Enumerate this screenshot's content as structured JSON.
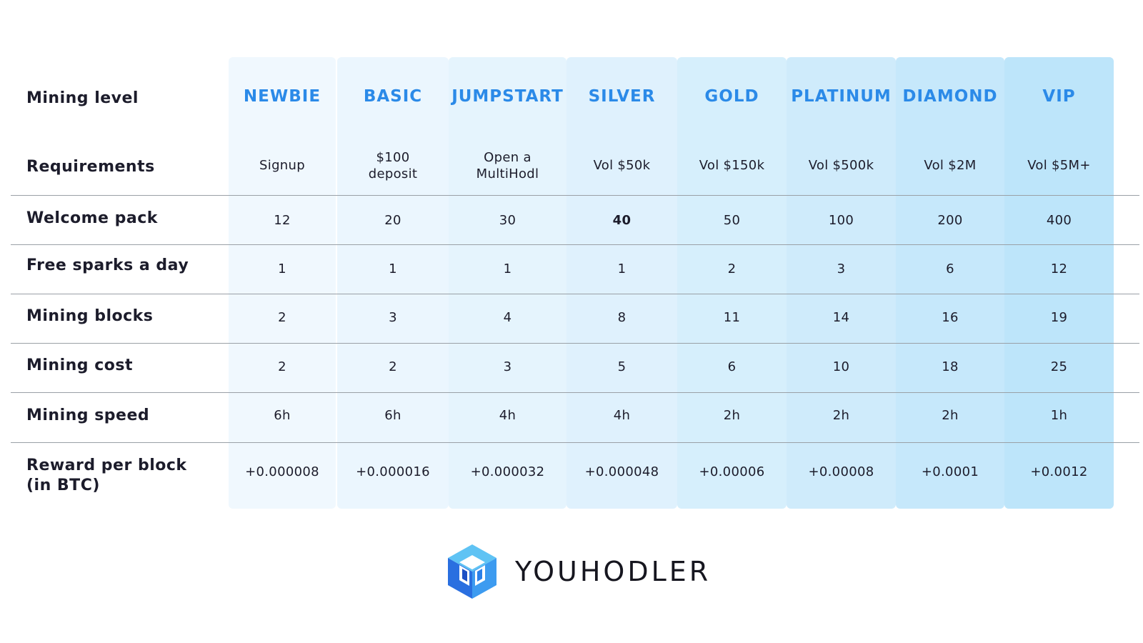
{
  "colors": {
    "header": "#2b8ae8",
    "columns": [
      "#f0f8fe",
      "#ebf6fe",
      "#e5f4fd",
      "#dff1fd",
      "#d6effc",
      "#cfebfb",
      "#c6e8fb",
      "#bde5fa"
    ]
  },
  "table": {
    "row_labels": {
      "level": "Mining level",
      "requirements": "Requirements",
      "welcome": "Welcome pack",
      "sparks": "Free sparks a day",
      "blocks": "Mining blocks",
      "cost": "Mining cost",
      "speed": "Mining speed",
      "reward": "Reward per block\n(in BTC)"
    },
    "columns": [
      {
        "name": "NEWBIE",
        "requirements": "Signup",
        "welcome": "12",
        "sparks": "1",
        "blocks": "2",
        "cost": "2",
        "speed": "6h",
        "reward": "+0.000008"
      },
      {
        "name": "BASIC",
        "requirements": "$100 deposit",
        "welcome": "20",
        "sparks": "1",
        "blocks": "3",
        "cost": "2",
        "speed": "6h",
        "reward": "+0.000016"
      },
      {
        "name": "JUMPSTART",
        "requirements": "Open a MultiHodl",
        "welcome": "30",
        "sparks": "1",
        "blocks": "4",
        "cost": "3",
        "speed": "4h",
        "reward": "+0.000032"
      },
      {
        "name": "SILVER",
        "requirements": "Vol $50k",
        "welcome": "40",
        "sparks": "1",
        "blocks": "8",
        "cost": "5",
        "speed": "4h",
        "reward": "+0.000048"
      },
      {
        "name": "GOLD",
        "requirements": "Vol $150k",
        "welcome": "50",
        "sparks": "2",
        "blocks": "11",
        "cost": "6",
        "speed": "2h",
        "reward": "+0.00006"
      },
      {
        "name": "PLATINUM",
        "requirements": "Vol $500k",
        "welcome": "100",
        "sparks": "3",
        "blocks": "14",
        "cost": "10",
        "speed": "2h",
        "reward": "+0.00008"
      },
      {
        "name": "DIAMOND",
        "requirements": "Vol $2M",
        "welcome": "200",
        "sparks": "6",
        "blocks": "16",
        "cost": "18",
        "speed": "2h",
        "reward": "+0.0001"
      },
      {
        "name": "VIP",
        "requirements": "Vol $5M+",
        "welcome": "400",
        "sparks": "12",
        "blocks": "19",
        "cost": "25",
        "speed": "1h",
        "reward": "+0.0012"
      }
    ]
  },
  "logo": {
    "text": "YOUHODLER",
    "icon": "cube-logo-icon"
  }
}
